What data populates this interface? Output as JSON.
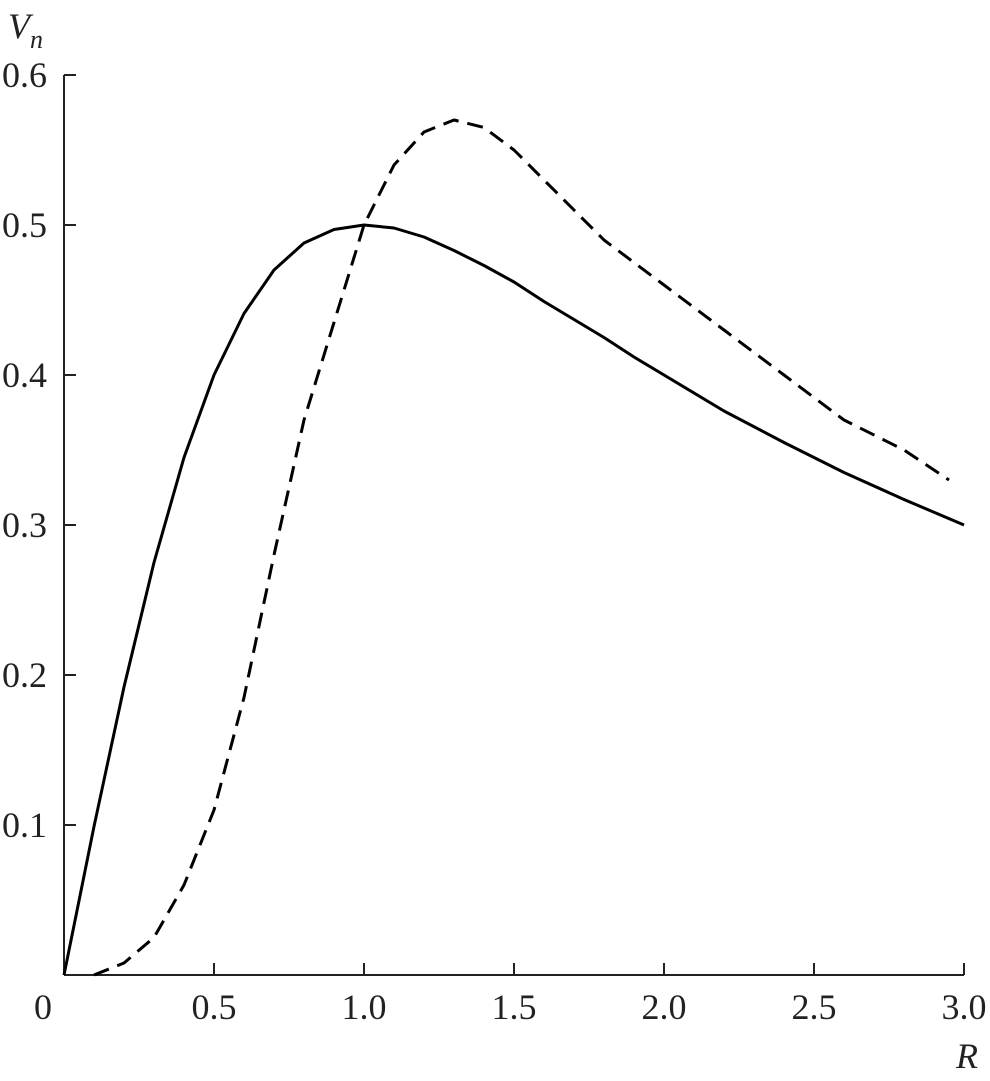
{
  "chart_data": {
    "type": "line",
    "x_label": "R",
    "y_label": {
      "main": "V",
      "sub": "n"
    },
    "xlim": [
      0,
      3.0
    ],
    "ylim": [
      0,
      0.6
    ],
    "xticks": [
      0,
      0.5,
      {
        "value": 1,
        "label": "1.0"
      },
      1.5,
      {
        "value": 2,
        "label": "2.0"
      },
      2.5,
      {
        "value": 3,
        "label": "3.0"
      }
    ],
    "yticks": [
      0.1,
      0.2,
      0.3,
      0.4,
      0.5,
      0.6
    ],
    "grid": false,
    "series": [
      {
        "color": "#000000",
        "style": "solid",
        "x": [
          0,
          0.1,
          0.2,
          0.3,
          0.4,
          0.5,
          0.6,
          0.7,
          0.8,
          0.9,
          1.0,
          1.1,
          1.2,
          1.3,
          1.4,
          1.5,
          1.6,
          1.7,
          1.8,
          1.9,
          2.0,
          2.2,
          2.4,
          2.6,
          2.8,
          3.0
        ],
        "values": [
          0,
          0.099,
          0.192,
          0.275,
          0.345,
          0.4,
          0.441,
          0.47,
          0.488,
          0.497,
          0.5,
          0.498,
          0.492,
          0.483,
          0.473,
          0.462,
          0.449,
          0.437,
          0.425,
          0.412,
          0.4,
          0.376,
          0.355,
          0.335,
          0.317,
          0.3
        ]
      },
      {
        "color": "#000000",
        "style": "dashed",
        "x": [
          0.1,
          0.2,
          0.3,
          0.4,
          0.5,
          0.6,
          0.7,
          0.8,
          0.9,
          1.0,
          1.1,
          1.2,
          1.3,
          1.4,
          1.5,
          1.6,
          1.7,
          1.8,
          2.0,
          2.2,
          2.4,
          2.6,
          2.8,
          2.95
        ],
        "values": [
          0,
          0.008,
          0.025,
          0.06,
          0.11,
          0.185,
          0.28,
          0.37,
          0.435,
          0.5,
          0.54,
          0.562,
          0.57,
          0.565,
          0.55,
          0.53,
          0.51,
          0.49,
          0.46,
          0.43,
          0.4,
          0.37,
          0.35,
          0.33
        ]
      }
    ]
  }
}
